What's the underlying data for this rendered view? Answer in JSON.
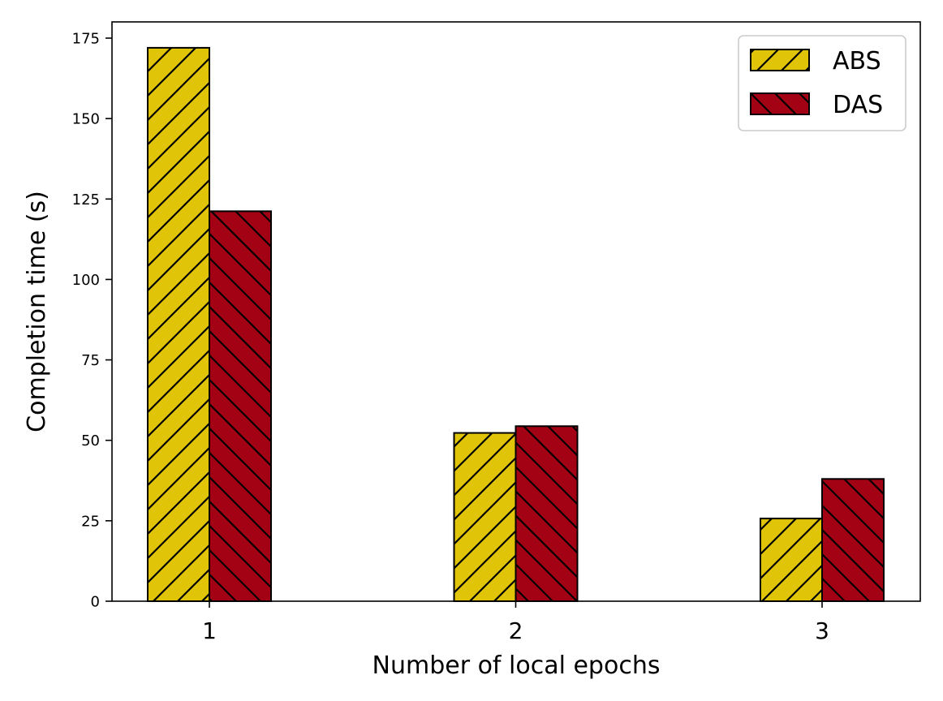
{
  "chart_data": {
    "type": "bar",
    "categories": [
      "1",
      "2",
      "3"
    ],
    "series": [
      {
        "name": "ABS",
        "values": [
          172,
          52.3,
          25.7
        ],
        "color": "#dfc407",
        "hatch": "forward-diagonal"
      },
      {
        "name": "DAS",
        "values": [
          121.2,
          54.4,
          38
        ],
        "color": "#a30214",
        "hatch": "backward-diagonal"
      }
    ],
    "title": "",
    "xlabel": "Number of local epochs",
    "ylabel": "Completion time (s)",
    "ylim": [
      0,
      180
    ],
    "yticks": [
      "0",
      "25",
      "50",
      "75",
      "100",
      "125",
      "150",
      "175"
    ],
    "grid": false,
    "legend_position": "top-right"
  }
}
